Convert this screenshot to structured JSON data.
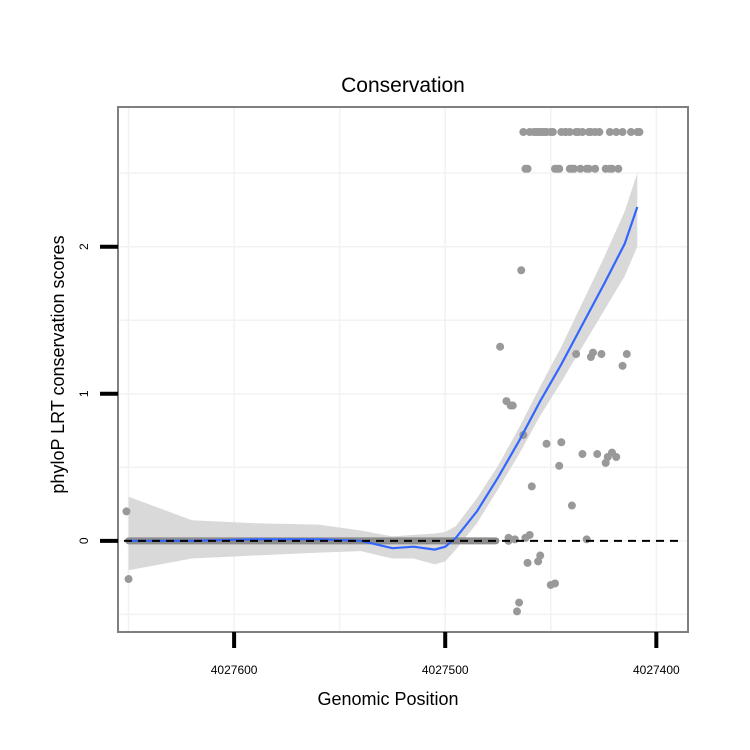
{
  "chart_data": {
    "type": "scatter",
    "title": "Conservation",
    "xlabel": "Genomic Position",
    "ylabel": "phyloP LRT conservation scores",
    "xlim": [
      4027655,
      4027385
    ],
    "ylim": [
      -0.62,
      2.95
    ],
    "x_reversed": true,
    "xticks": [
      4027600,
      4027500,
      4027400
    ],
    "xtick_labels": [
      "4027600",
      "4027500",
      "4027400"
    ],
    "yticks": [
      0,
      1,
      2
    ],
    "ytick_labels": [
      "0",
      "1",
      "2"
    ],
    "minor_x": [
      4027650,
      4027550,
      4027450
    ],
    "minor_y": [
      -0.5,
      0.5,
      1.5,
      2.5
    ],
    "reference_line": {
      "y": 0,
      "style": "dashed",
      "color": "#000000"
    },
    "colors": {
      "points": "#999999",
      "smooth": "#3366ff",
      "ribbon": "#d9d9d9",
      "panel_border": "#7f7f7f",
      "grid": "#f2f2f2"
    },
    "points": {
      "x": [
        4027651,
        4027650,
        4027474,
        4027471,
        4027469,
        4027468,
        4027466,
        4027465,
        4027464,
        4027463,
        4027462,
        4027461,
        4027460,
        4027459,
        4027458,
        4027456,
        4027455,
        4027454,
        4027452,
        4027450,
        4027449,
        4027448,
        4027446,
        4027445,
        4027443,
        4027440,
        4027438,
        4027437,
        4027435,
        4027433,
        4027431,
        4027430,
        4027428,
        4027426,
        4027424,
        4027423,
        4027421,
        4027419,
        4027416,
        4027414,
        4027470,
        4027467,
        4027470,
        4027447,
        4027441,
        4027436,
        4027429,
        4027424,
        4027418
      ],
      "y": [
        0.2,
        -0.26,
        1.32,
        0.95,
        0.92,
        0.92,
        -0.48,
        -0.42,
        1.84,
        0.72,
        0.02,
        -0.15,
        0.04,
        0.37,
        2.78,
        -0.14,
        -0.1,
        2.78,
        0.66,
        -0.3,
        2.78,
        -0.29,
        0.51,
        0.67,
        2.78,
        0.24,
        1.27,
        2.78,
        0.59,
        0.01,
        1.25,
        1.28,
        0.59,
        1.27,
        0.53,
        0.57,
        0.6,
        0.57,
        1.19,
        1.27,
        0.02,
        0.01,
        0.0,
        2.53,
        2.53,
        2.53,
        2.53,
        2.53,
        2.53
      ],
      "x_band_top": [
        4027463,
        4027460,
        4027457,
        4027456,
        4027455,
        4027453,
        4027452,
        4027450,
        4027445,
        4027443,
        4027441,
        4027438,
        4027435,
        4027432,
        4027431,
        4027429,
        4027427,
        4027422,
        4027419,
        4027416,
        4027412,
        4027409,
        4027408
      ],
      "x_band_mid": [
        4027462,
        4027461,
        4027448,
        4027446,
        4027440,
        4027439,
        4027433,
        4027432,
        4027422,
        4027421
      ]
    },
    "zero_band": {
      "x_from": 4027650,
      "x_to": 4027476,
      "y": 0
    },
    "smooth": {
      "x": [
        4027650,
        4027620,
        4027590,
        4027560,
        4027540,
        4027525,
        4027515,
        4027505,
        4027500,
        4027495,
        4027485,
        4027475,
        4027465,
        4027455,
        4027445,
        4027435,
        4027425,
        4027415,
        4027409
      ],
      "y": [
        0.0,
        0.0,
        0.01,
        0.01,
        0.0,
        -0.05,
        -0.04,
        -0.06,
        -0.04,
        0.02,
        0.2,
        0.43,
        0.68,
        0.95,
        1.2,
        1.47,
        1.74,
        2.02,
        2.27
      ],
      "lower": [
        -0.2,
        -0.12,
        -0.1,
        -0.08,
        -0.07,
        -0.12,
        -0.12,
        -0.16,
        -0.14,
        -0.06,
        0.12,
        0.35,
        0.59,
        0.85,
        1.08,
        1.32,
        1.56,
        1.8,
        2.0
      ],
      "upper": [
        0.3,
        0.14,
        0.12,
        0.11,
        0.07,
        0.03,
        0.04,
        0.05,
        0.06,
        0.1,
        0.29,
        0.51,
        0.77,
        1.05,
        1.32,
        1.62,
        1.92,
        2.24,
        2.5
      ]
    }
  }
}
